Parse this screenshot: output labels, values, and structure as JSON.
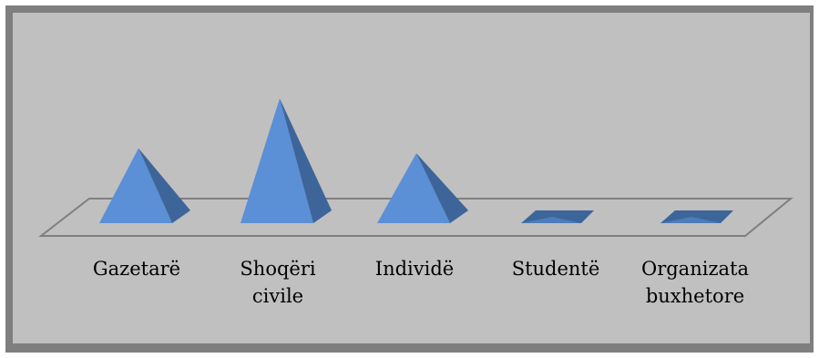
{
  "chart_data": {
    "type": "bar",
    "subtype": "3d-pyramid",
    "categories": [
      "Gazetarë",
      "Shoqëri civile",
      "Individë",
      "Studentë",
      "Organizata buxhetore"
    ],
    "category_lines": [
      [
        "Gazetarë"
      ],
      [
        "Shoqëri",
        "civile"
      ],
      [
        "Individë"
      ],
      [
        "Studentë"
      ],
      [
        "Organizata",
        "buxhetore"
      ]
    ],
    "values": [
      30,
      50,
      28,
      0,
      0
    ],
    "title": "",
    "xlabel": "",
    "ylabel": "",
    "grid": false,
    "legend": "none"
  },
  "colors": {
    "frame": "#7f7f7f",
    "plot_background": "#c0c0c0",
    "pyramid_front": "#5b8fd6",
    "pyramid_side": "#3d6599",
    "floor_outline": "#7f7f7f"
  }
}
